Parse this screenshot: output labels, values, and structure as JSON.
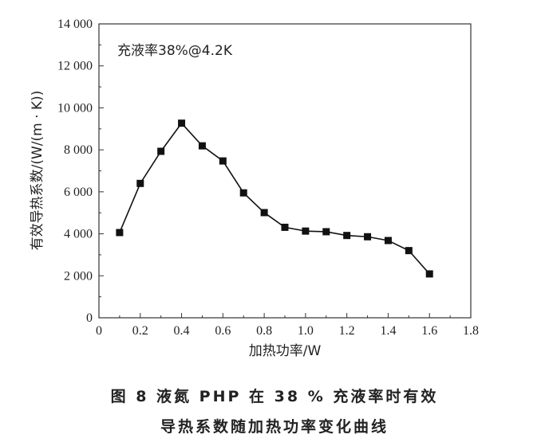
{
  "chart_data": {
    "type": "line",
    "annotation": "充液率38%@4.2K",
    "xlabel": "加热功率/W",
    "ylabel": "有效导热系数/(W/(m · K))",
    "xlim": [
      0,
      1.8
    ],
    "ylim": [
      0,
      14000
    ],
    "x_ticks": [
      "0",
      "0.2",
      "0.4",
      "0.6",
      "0.8",
      "1.0",
      "1.2",
      "1.4",
      "1.6",
      "1.8"
    ],
    "y_ticks": [
      "0",
      "2 000",
      "4 000",
      "6 000",
      "8 000",
      "10 000",
      "12 000",
      "14 000"
    ],
    "grid": false,
    "series": [
      {
        "name": "充液率38%@4.2K",
        "marker": "square",
        "color": "#111111",
        "x": [
          0.1,
          0.2,
          0.3,
          0.4,
          0.5,
          0.6,
          0.7,
          0.8,
          0.9,
          1.0,
          1.1,
          1.2,
          1.3,
          1.4,
          1.5,
          1.6
        ],
        "y": [
          4060,
          6400,
          7930,
          9270,
          8190,
          7470,
          5950,
          5010,
          4310,
          4130,
          4100,
          3920,
          3860,
          3680,
          3200,
          2090
        ]
      }
    ]
  },
  "caption": {
    "line1": "图 8   液氮 PHP 在 38 % 充液率时有效",
    "line2": "导热系数随加热功率变化曲线"
  }
}
